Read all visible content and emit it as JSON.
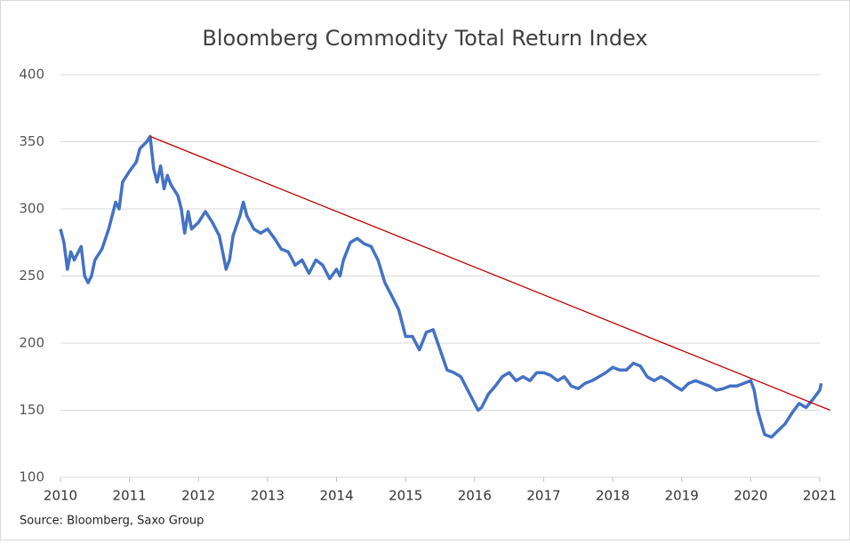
{
  "chart_data": {
    "type": "line",
    "title": "Bloomberg Commodity Total Return Index",
    "source": "Source: Bloomberg, Saxo Group",
    "color": "#4472c4",
    "grid": true,
    "xlim": [
      2010,
      2021
    ],
    "xticks": [
      2010,
      2011,
      2012,
      2013,
      2014,
      2015,
      2016,
      2017,
      2018,
      2019,
      2020,
      2021
    ],
    "ylim": [
      100,
      400
    ],
    "yticks": [
      100,
      150,
      200,
      250,
      300,
      350,
      400
    ],
    "x": [
      2010.0,
      2010.05,
      2010.1,
      2010.15,
      2010.2,
      2010.3,
      2010.35,
      2010.4,
      2010.45,
      2010.5,
      2010.6,
      2010.7,
      2010.8,
      2010.85,
      2010.9,
      2011.0,
      2011.1,
      2011.15,
      2011.25,
      2011.3,
      2011.35,
      2011.4,
      2011.45,
      2011.5,
      2011.55,
      2011.6,
      2011.7,
      2011.75,
      2011.8,
      2011.85,
      2011.9,
      2012.0,
      2012.1,
      2012.2,
      2012.3,
      2012.35,
      2012.4,
      2012.45,
      2012.5,
      2012.6,
      2012.65,
      2012.7,
      2012.8,
      2012.9,
      2013.0,
      2013.1,
      2013.2,
      2013.3,
      2013.4,
      2013.5,
      2013.6,
      2013.7,
      2013.8,
      2013.9,
      2014.0,
      2014.05,
      2014.1,
      2014.2,
      2014.3,
      2014.4,
      2014.5,
      2014.6,
      2014.7,
      2014.8,
      2014.9,
      2015.0,
      2015.1,
      2015.2,
      2015.3,
      2015.4,
      2015.5,
      2015.6,
      2015.7,
      2015.8,
      2015.9,
      2016.0,
      2016.05,
      2016.1,
      2016.2,
      2016.3,
      2016.4,
      2016.5,
      2016.6,
      2016.7,
      2016.8,
      2016.9,
      2017.0,
      2017.1,
      2017.2,
      2017.3,
      2017.4,
      2017.5,
      2017.6,
      2017.7,
      2017.8,
      2017.9,
      2018.0,
      2018.1,
      2018.2,
      2018.3,
      2018.4,
      2018.5,
      2018.6,
      2018.7,
      2018.8,
      2018.9,
      2019.0,
      2019.1,
      2019.2,
      2019.3,
      2019.4,
      2019.5,
      2019.6,
      2019.7,
      2019.8,
      2019.9,
      2020.0,
      2020.05,
      2020.1,
      2020.2,
      2020.3,
      2020.4,
      2020.5,
      2020.6,
      2020.7,
      2020.8,
      2020.9,
      2021.0,
      2021.02
    ],
    "values": [
      285,
      275,
      255,
      268,
      262,
      272,
      250,
      245,
      250,
      262,
      270,
      285,
      305,
      300,
      320,
      328,
      335,
      345,
      350,
      354,
      330,
      320,
      332,
      315,
      325,
      318,
      310,
      300,
      282,
      298,
      285,
      290,
      298,
      290,
      280,
      268,
      255,
      262,
      280,
      295,
      305,
      295,
      285,
      282,
      285,
      278,
      270,
      268,
      258,
      262,
      252,
      262,
      258,
      248,
      255,
      250,
      262,
      275,
      278,
      274,
      272,
      262,
      245,
      235,
      225,
      205,
      205,
      195,
      208,
      210,
      195,
      180,
      178,
      175,
      165,
      155,
      150,
      152,
      162,
      168,
      175,
      178,
      172,
      175,
      172,
      178,
      178,
      176,
      172,
      175,
      168,
      166,
      170,
      172,
      175,
      178,
      182,
      180,
      180,
      185,
      183,
      175,
      172,
      175,
      172,
      168,
      165,
      170,
      172,
      170,
      168,
      165,
      166,
      168,
      168,
      170,
      172,
      165,
      150,
      132,
      130,
      135,
      140,
      148,
      155,
      152,
      158,
      165,
      170
    ],
    "trendline": {
      "color": "#c00000",
      "x": [
        2011.3,
        2021.15
      ],
      "y": [
        354,
        150
      ]
    }
  }
}
